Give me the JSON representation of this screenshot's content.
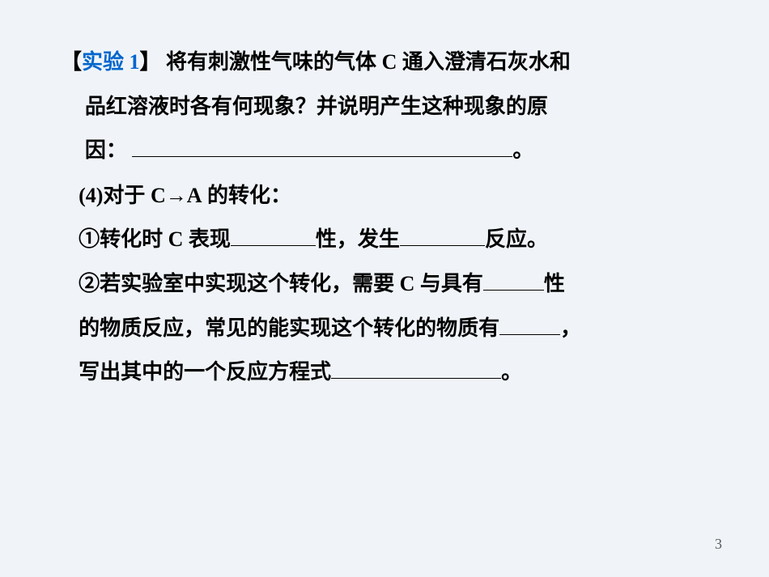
{
  "experiment": {
    "bracket_open": "【",
    "label": "实验 1",
    "bracket_close": "】",
    "line1_part1": " 将有刺激性气味的气体 ",
    "line1_gas": "C",
    "line1_part2": " 通入澄清石灰水和",
    "line2": "品红溶液时各有何现象？并说明产生这种现象的原",
    "line3_prefix": "因：",
    "line3_suffix": "。"
  },
  "section4": {
    "number": "(4)",
    "text_part1": "对于 ",
    "letter_c": "C",
    "arrow": "→",
    "letter_a": "A",
    "text_part2": " 的转化："
  },
  "item1": {
    "number": "①",
    "text1": "转化时 ",
    "letter_c": "C",
    "text2": " 表现",
    "text3": "性，发生",
    "text4": "反应。"
  },
  "item2": {
    "number": "②",
    "line1_text1": "若实验室中实现这个转化，需要 ",
    "line1_letter": "C",
    "line1_text2": " 与具有",
    "line1_text3": "性",
    "line2_text1": "的物质反应，常见的能实现这个转化的物质有",
    "line2_text2": "，",
    "line3_text1": "写出其中的一个反应方程式",
    "line3_text2": "。"
  },
  "page_number": "3",
  "colors": {
    "background": "#f0f4f8",
    "text": "#000000",
    "link": "#0066cc",
    "page_num": "#595959"
  }
}
